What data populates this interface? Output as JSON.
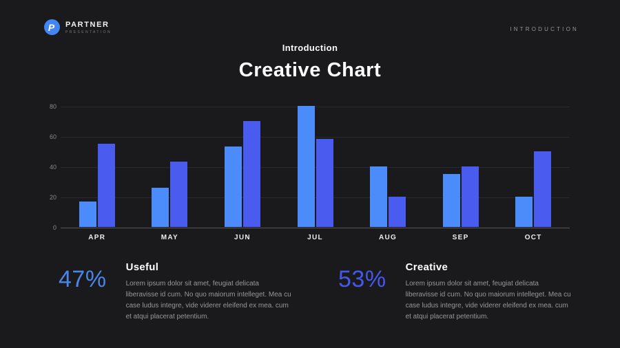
{
  "header": {
    "logo": {
      "title": "PARTNER",
      "subtitle": "PRESENTATION",
      "icon_letter": "P",
      "icon_color": "#4285f4"
    },
    "page_label": "INTRODUCTION"
  },
  "title": {
    "kicker": "Introduction",
    "heading": "Creative Chart"
  },
  "chart_data": {
    "type": "bar",
    "categories": [
      "APR",
      "MAY",
      "JUN",
      "JUL",
      "AUG",
      "SEP",
      "OCT"
    ],
    "series": [
      {
        "name": "Useful",
        "color": "#4c8cfa",
        "values": [
          17,
          26,
          53,
          80,
          40,
          35,
          20
        ]
      },
      {
        "name": "Creative",
        "color": "#4a5cf0",
        "values": [
          55,
          43,
          70,
          58,
          20,
          40,
          50
        ]
      }
    ],
    "title": "Creative Chart",
    "xlabel": "",
    "ylabel": "",
    "ylim": [
      0,
      80
    ],
    "yticks": [
      0,
      20,
      40,
      60,
      80
    ],
    "grid": true,
    "legend": "none"
  },
  "stats": [
    {
      "percent": "47%",
      "color": "#4a85e8",
      "title": "Useful",
      "text": "Lorem ipsum dolor sit amet, feugiat delicata liberavisse id cum. No quo maiorum intelleget. Mea cu case ludus integre, vide viderer eleifend ex mea. cum et atqui placerat petentium."
    },
    {
      "percent": "53%",
      "color": "#4458ec",
      "title": "Creative",
      "text": "Lorem ipsum dolor sit amet, feugiat delicata liberavisse id cum. No quo maiorum intelleget. Mea cu case ludus integre, vide viderer eleifend ex mea. cum et atqui placerat petentium."
    }
  ]
}
